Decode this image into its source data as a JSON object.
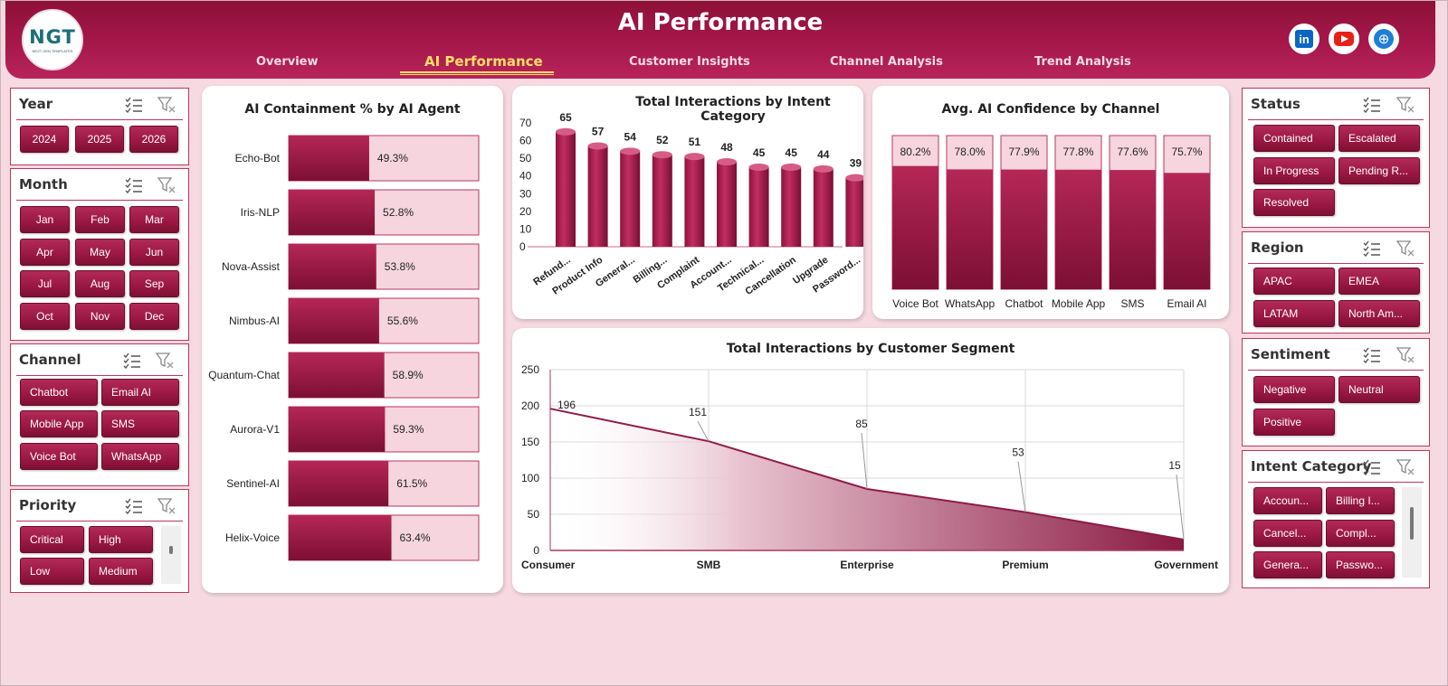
{
  "header": {
    "title": "AI Performance",
    "logo_text": "NGT",
    "logo_sub": "NEXT GEN TEMPLATES",
    "nav": [
      "Overview",
      "AI Performance",
      "Customer Insights",
      "Channel Analysis",
      "Trend Analysis"
    ],
    "active_nav": "AI Performance",
    "social": [
      "linkedin-icon",
      "youtube-icon",
      "globe-icon"
    ],
    "linkedin_glyph": "in"
  },
  "colors": {
    "accent": "#9a1744",
    "background": "#f6d9e1",
    "light_fill": "#f6d5df",
    "header": "#a5184a"
  },
  "slicers": {
    "year": {
      "title": "Year",
      "items": [
        "2024",
        "2025",
        "2026"
      ]
    },
    "month": {
      "title": "Month",
      "items": [
        "Jan",
        "Feb",
        "Mar",
        "Apr",
        "May",
        "Jun",
        "Jul",
        "Aug",
        "Sep",
        "Oct",
        "Nov",
        "Dec"
      ]
    },
    "channel": {
      "title": "Channel",
      "items": [
        "Chatbot",
        "Email AI",
        "Mobile App",
        "SMS",
        "Voice Bot",
        "WhatsApp"
      ]
    },
    "priority": {
      "title": "Priority",
      "items": [
        "Critical",
        "High",
        "Low",
        "Medium"
      ]
    },
    "status": {
      "title": "Status",
      "items": [
        "Contained",
        "Escalated",
        "In Progress",
        "Pending R...",
        "Resolved"
      ]
    },
    "region": {
      "title": "Region",
      "items": [
        "APAC",
        "EMEA",
        "LATAM",
        "North Am..."
      ]
    },
    "sentiment": {
      "title": "Sentiment",
      "items": [
        "Negative",
        "Neutral",
        "Positive"
      ]
    },
    "intent": {
      "title": "Intent Category",
      "items": [
        "Accoun...",
        "Billing I...",
        "Cancel...",
        "Compl...",
        "Genera...",
        "Passwo..."
      ]
    }
  },
  "chart_data": [
    {
      "type": "bar",
      "orientation": "horizontal",
      "title": "AI Containment  % by AI Agent",
      "categories": [
        "Echo-Bot",
        "Iris-NLP",
        "Nova-Assist",
        "Nimbus-AI",
        "Quantum-Chat",
        "Aurora-V1",
        "Sentinel-AI",
        "Helix-Voice"
      ],
      "values": [
        49.3,
        52.8,
        53.8,
        55.6,
        58.9,
        59.3,
        61.5,
        63.4
      ],
      "labels": [
        "49.3%",
        "52.8%",
        "53.8%",
        "55.6%",
        "58.9%",
        "59.3%",
        "61.5%",
        "63.4%"
      ],
      "xlim": [
        0,
        100
      ]
    },
    {
      "type": "bar",
      "title": "Total Interactions by Intent Category",
      "categories": [
        "Refund...",
        "Product Info",
        "General...",
        "Billing...",
        "Complaint",
        "Account...",
        "Technical...",
        "Cancellation",
        "Upgrade",
        "Password..."
      ],
      "values": [
        65,
        57,
        54,
        52,
        51,
        48,
        45,
        45,
        44,
        39
      ],
      "ylim": [
        0,
        70
      ],
      "yticks": [
        "0",
        "10",
        "20",
        "30",
        "40",
        "50",
        "60",
        "70"
      ]
    },
    {
      "type": "bar",
      "title": "Avg. AI Confidence  by Channel",
      "categories": [
        "Voice Bot",
        "WhatsApp",
        "Chatbot",
        "Mobile App",
        "SMS",
        "Email AI"
      ],
      "values": [
        80.2,
        78.0,
        77.9,
        77.8,
        77.6,
        75.7
      ],
      "labels": [
        "80.2%",
        "78.0%",
        "77.9%",
        "77.8%",
        "77.6%",
        "75.7%"
      ],
      "ylim": [
        0,
        100
      ]
    },
    {
      "type": "area",
      "title": "Total Interactions by Customer Segment",
      "categories": [
        "Consumer",
        "SMB",
        "Enterprise",
        "Premium",
        "Government"
      ],
      "values": [
        196,
        151,
        85,
        53,
        15
      ],
      "ylim": [
        0,
        250
      ],
      "yticks": [
        "0",
        "50",
        "100",
        "150",
        "200",
        "250"
      ],
      "grid": true
    }
  ]
}
